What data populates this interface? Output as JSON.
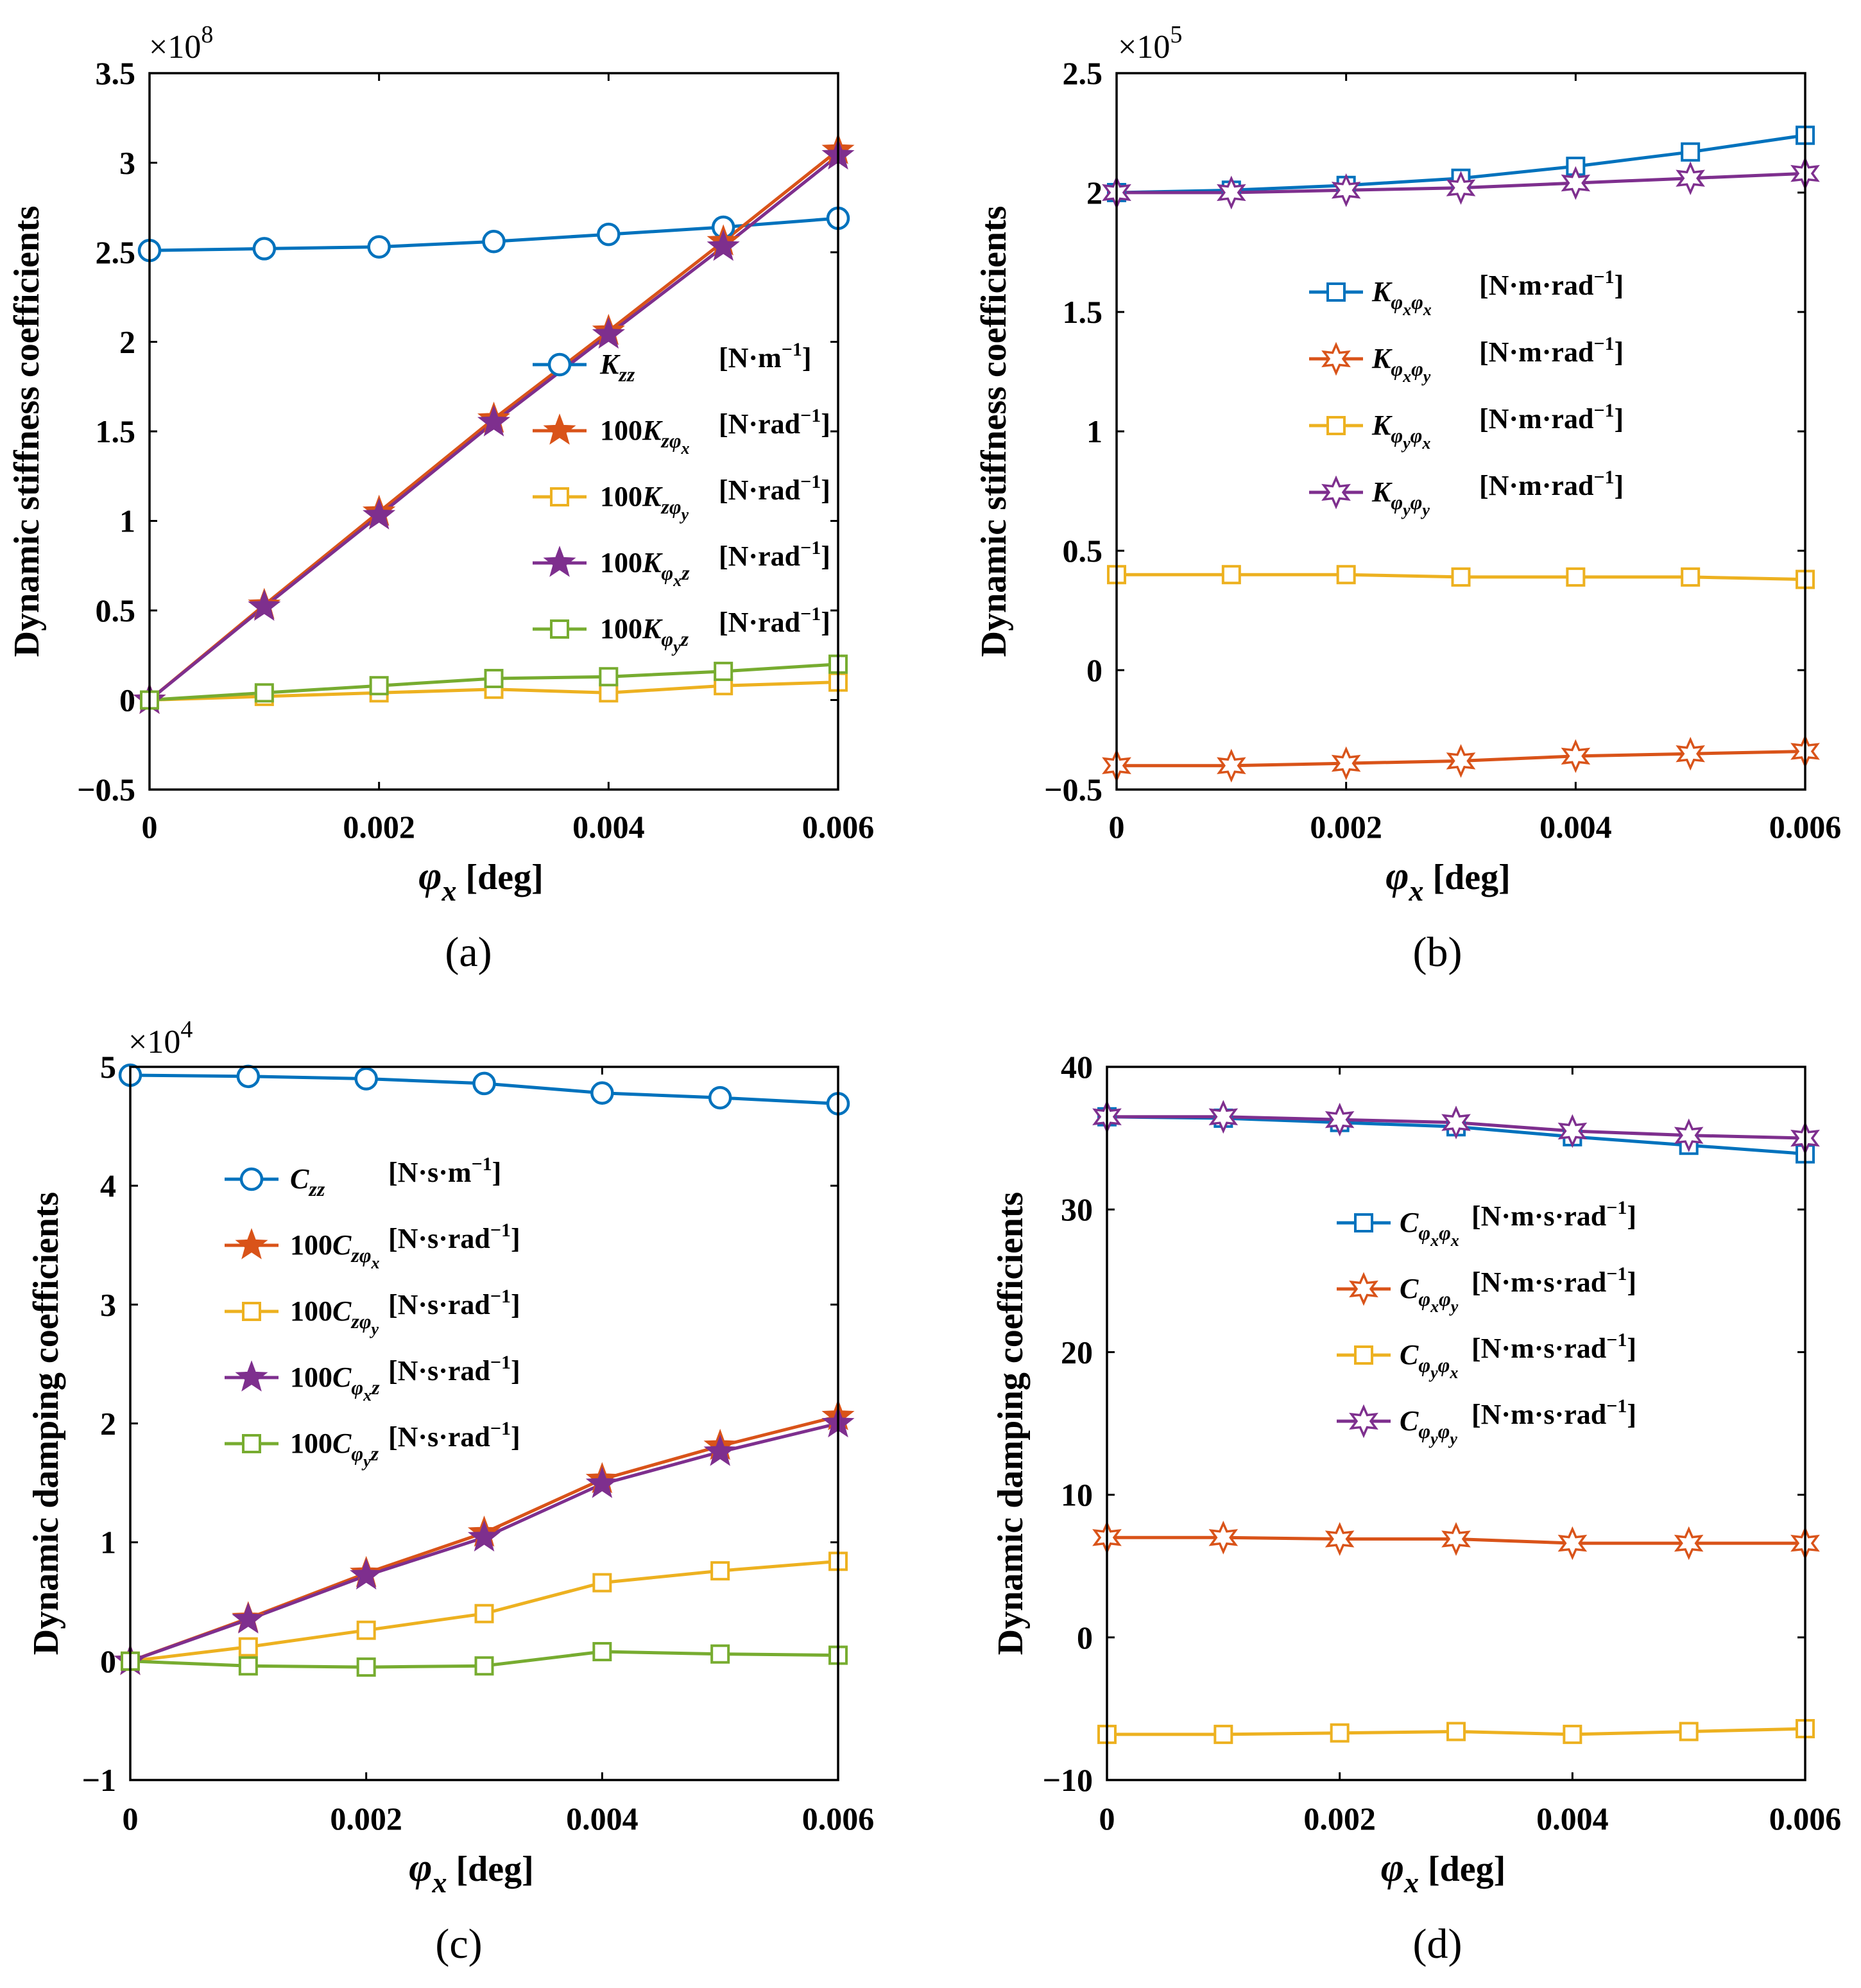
{
  "colors": {
    "blue": "#0072BD",
    "orange": "#D95319",
    "yellow": "#EDB120",
    "purple": "#7E2F8E",
    "green": "#77AC30"
  },
  "chart_data": [
    {
      "id": "a",
      "type": "line",
      "caption": "(a)",
      "ylabel": "Dynamic stiffness coefficients",
      "xlabel_main": "φ",
      "xlabel_sub": "x",
      "xlabel_unit": " [deg]",
      "multiplier_base": "×10",
      "multiplier_exp": "8",
      "x": [
        0,
        0.001,
        0.002,
        0.003,
        0.004,
        0.005,
        0.006
      ],
      "xlim": [
        0,
        0.006
      ],
      "ylim": [
        -0.5,
        3.5
      ],
      "xticks": [
        0,
        0.002,
        0.004,
        0.006
      ],
      "xtick_labels": [
        "0",
        "0.002",
        "0.004",
        "0.006"
      ],
      "yticks": [
        -0.5,
        0,
        0.5,
        1,
        1.5,
        2,
        2.5,
        3,
        3.5
      ],
      "ytick_labels": [
        "−0.5",
        "0",
        "0.5",
        "1",
        "1.5",
        "2",
        "2.5",
        "3",
        "3.5"
      ],
      "legend_position": "center-right",
      "series": [
        {
          "color": "blue",
          "marker": "circle",
          "label_pre": "K",
          "label_sub": "zz",
          "label_sub2": "",
          "label_tail": "",
          "unit": "[N·m",
          "unit_exp": "−1",
          "values": [
            2.51,
            2.52,
            2.53,
            2.56,
            2.6,
            2.64,
            2.69
          ]
        },
        {
          "color": "orange",
          "marker": "star",
          "label_pre": "100K",
          "label_sub": "zφ",
          "label_sub2": "x",
          "label_tail": "",
          "unit": "[N·rad",
          "unit_exp": "−1",
          "values": [
            0,
            0.53,
            1.05,
            1.57,
            2.06,
            2.56,
            3.07
          ]
        },
        {
          "color": "yellow",
          "marker": "square",
          "label_pre": "100K",
          "label_sub": "zφ",
          "label_sub2": "y",
          "label_tail": "",
          "unit": "[N·rad",
          "unit_exp": "−1",
          "values": [
            0,
            0.02,
            0.04,
            0.06,
            0.04,
            0.08,
            0.1
          ]
        },
        {
          "color": "purple",
          "marker": "star",
          "label_pre": "100K",
          "label_sub": "φ",
          "label_sub2": "x",
          "label_tail": "z",
          "unit": "[N·rad",
          "unit_exp": "−1",
          "values": [
            0,
            0.52,
            1.03,
            1.55,
            2.04,
            2.53,
            3.04
          ]
        },
        {
          "color": "green",
          "marker": "square",
          "label_pre": "100K",
          "label_sub": "φ",
          "label_sub2": "y",
          "label_tail": "z",
          "unit": "[N·rad",
          "unit_exp": "−1",
          "values": [
            0,
            0.04,
            0.08,
            0.12,
            0.13,
            0.16,
            0.2
          ]
        }
      ]
    },
    {
      "id": "b",
      "type": "line",
      "caption": "(b)",
      "ylabel": "Dynamic stiffness coefficients",
      "xlabel_main": "φ",
      "xlabel_sub": "x",
      "xlabel_unit": " [deg]",
      "multiplier_base": "×10",
      "multiplier_exp": "5",
      "x": [
        0,
        0.001,
        0.002,
        0.003,
        0.004,
        0.005,
        0.006
      ],
      "xlim": [
        0,
        0.006
      ],
      "ylim": [
        -0.5,
        2.5
      ],
      "xticks": [
        0,
        0.002,
        0.004,
        0.006
      ],
      "xtick_labels": [
        "0",
        "0.002",
        "0.004",
        "0.006"
      ],
      "yticks": [
        -0.5,
        0,
        0.5,
        1,
        1.5,
        2,
        2.5
      ],
      "ytick_labels": [
        "−0.5",
        "0",
        "0.5",
        "1",
        "1.5",
        "2",
        "2.5"
      ],
      "legend_position": "upper-center",
      "series": [
        {
          "color": "blue",
          "marker": "square",
          "label_pre": "K",
          "label_sub": "φ",
          "label_sub2": "x",
          "label_tail": "φ",
          "label_tail_sub": "x",
          "unit": "[N·m·rad",
          "unit_exp": "−1",
          "values": [
            2.0,
            2.01,
            2.03,
            2.06,
            2.11,
            2.17,
            2.24
          ]
        },
        {
          "color": "orange",
          "marker": "hexstar",
          "label_pre": "K",
          "label_sub": "φ",
          "label_sub2": "x",
          "label_tail": "φ",
          "label_tail_sub": "y",
          "unit": "[N·m·rad",
          "unit_exp": "−1",
          "values": [
            -0.4,
            -0.4,
            -0.39,
            -0.38,
            -0.36,
            -0.35,
            -0.34
          ]
        },
        {
          "color": "yellow",
          "marker": "square",
          "label_pre": "K",
          "label_sub": "φ",
          "label_sub2": "y",
          "label_tail": "φ",
          "label_tail_sub": "x",
          "unit": "[N·m·rad",
          "unit_exp": "−1",
          "values": [
            0.4,
            0.4,
            0.4,
            0.39,
            0.39,
            0.39,
            0.38
          ]
        },
        {
          "color": "purple",
          "marker": "hexstar",
          "label_pre": "K",
          "label_sub": "φ",
          "label_sub2": "y",
          "label_tail": "φ",
          "label_tail_sub": "y",
          "unit": "[N·m·rad",
          "unit_exp": "−1",
          "values": [
            2.0,
            2.0,
            2.01,
            2.02,
            2.04,
            2.06,
            2.08
          ]
        }
      ]
    },
    {
      "id": "c",
      "type": "line",
      "caption": "(c)",
      "ylabel": "Dynamic damping coefficients",
      "xlabel_main": "φ",
      "xlabel_sub": "x",
      "xlabel_unit": " [deg]",
      "multiplier_base": "×10",
      "multiplier_exp": "4",
      "x": [
        0,
        0.001,
        0.002,
        0.003,
        0.004,
        0.005,
        0.006
      ],
      "xlim": [
        0,
        0.006
      ],
      "ylim": [
        -1,
        5
      ],
      "xticks": [
        0,
        0.002,
        0.004,
        0.006
      ],
      "xtick_labels": [
        "0",
        "0.002",
        "0.004",
        "0.006"
      ],
      "yticks": [
        -1,
        0,
        1,
        2,
        3,
        4,
        5
      ],
      "ytick_labels": [
        "−1",
        "0",
        "1",
        "2",
        "3",
        "4",
        "5"
      ],
      "legend_position": "upper-left",
      "series": [
        {
          "color": "blue",
          "marker": "circle",
          "label_pre": "C",
          "label_sub": "zz",
          "label_sub2": "",
          "label_tail": "",
          "unit": "[N·s·m",
          "unit_exp": "−1",
          "values": [
            4.93,
            4.92,
            4.9,
            4.86,
            4.78,
            4.74,
            4.69
          ]
        },
        {
          "color": "orange",
          "marker": "star",
          "label_pre": "100C",
          "label_sub": "zφ",
          "label_sub2": "x",
          "label_tail": "",
          "unit": "[N·s·rad",
          "unit_exp": "−1",
          "values": [
            0,
            0.36,
            0.74,
            1.08,
            1.53,
            1.81,
            2.06
          ]
        },
        {
          "color": "yellow",
          "marker": "square",
          "label_pre": "100C",
          "label_sub": "zφ",
          "label_sub2": "y",
          "label_tail": "",
          "unit": "[N·s·rad",
          "unit_exp": "−1",
          "values": [
            0,
            0.12,
            0.26,
            0.4,
            0.66,
            0.76,
            0.84
          ]
        },
        {
          "color": "purple",
          "marker": "star",
          "label_pre": "100C",
          "label_sub": "φ",
          "label_sub2": "x",
          "label_tail": "z",
          "unit": "[N·s·rad",
          "unit_exp": "−1",
          "values": [
            0,
            0.35,
            0.72,
            1.04,
            1.49,
            1.76,
            2.0
          ]
        },
        {
          "color": "green",
          "marker": "square",
          "label_pre": "100C",
          "label_sub": "φ",
          "label_sub2": "y",
          "label_tail": "z",
          "unit": "[N·s·rad",
          "unit_exp": "−1",
          "values": [
            0,
            -0.04,
            -0.05,
            -0.04,
            0.08,
            0.06,
            0.05
          ]
        }
      ]
    },
    {
      "id": "d",
      "type": "line",
      "caption": "(d)",
      "ylabel": "Dynamic damping coefficients",
      "xlabel_main": "φ",
      "xlabel_sub": "x",
      "xlabel_unit": " [deg]",
      "multiplier_base": "",
      "multiplier_exp": "",
      "x": [
        0,
        0.001,
        0.002,
        0.003,
        0.004,
        0.005,
        0.006
      ],
      "xlim": [
        0,
        0.006
      ],
      "ylim": [
        -10,
        40
      ],
      "xticks": [
        0,
        0.002,
        0.004,
        0.006
      ],
      "xtick_labels": [
        "0",
        "0.002",
        "0.004",
        "0.006"
      ],
      "yticks": [
        -10,
        0,
        10,
        20,
        30,
        40
      ],
      "ytick_labels": [
        "−10",
        "0",
        "10",
        "20",
        "30",
        "40"
      ],
      "legend_position": "center",
      "series": [
        {
          "color": "blue",
          "marker": "square",
          "label_pre": "C",
          "label_sub": "φ",
          "label_sub2": "x",
          "label_tail": "φ",
          "label_tail_sub": "x",
          "unit": "[N·m·s·rad",
          "unit_exp": "−1",
          "values": [
            36.5,
            36.4,
            36.1,
            35.8,
            35.1,
            34.5,
            33.9
          ]
        },
        {
          "color": "orange",
          "marker": "hexstar",
          "label_pre": "C",
          "label_sub": "φ",
          "label_sub2": "x",
          "label_tail": "φ",
          "label_tail_sub": "y",
          "unit": "[N·m·s·rad",
          "unit_exp": "−1",
          "values": [
            7.0,
            7.0,
            6.9,
            6.9,
            6.6,
            6.6,
            6.6
          ]
        },
        {
          "color": "yellow",
          "marker": "square",
          "label_pre": "C",
          "label_sub": "φ",
          "label_sub2": "y",
          "label_tail": "φ",
          "label_tail_sub": "x",
          "unit": "[N·m·s·rad",
          "unit_exp": "−1",
          "values": [
            -6.8,
            -6.8,
            -6.7,
            -6.6,
            -6.8,
            -6.6,
            -6.4
          ]
        },
        {
          "color": "purple",
          "marker": "hexstar",
          "label_pre": "C",
          "label_sub": "φ",
          "label_sub2": "y",
          "label_tail": "φ",
          "label_tail_sub": "y",
          "unit": "[N·m·s·rad",
          "unit_exp": "−1",
          "values": [
            36.5,
            36.5,
            36.3,
            36.1,
            35.5,
            35.2,
            35.0
          ]
        }
      ]
    }
  ]
}
